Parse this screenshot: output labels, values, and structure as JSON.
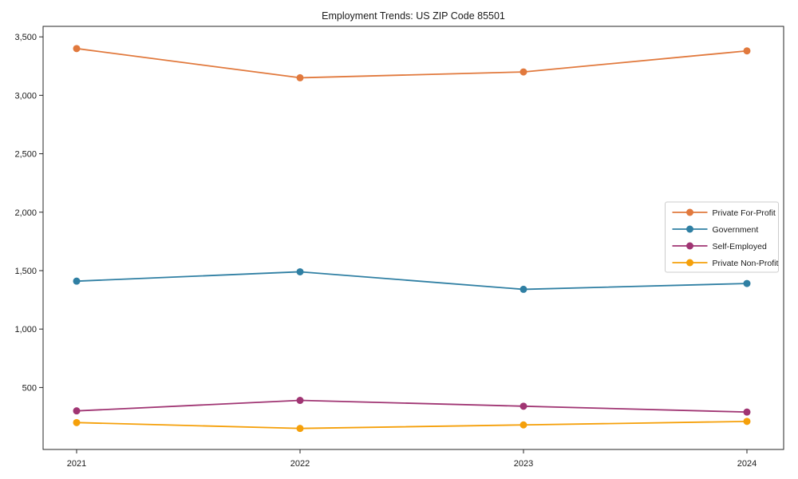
{
  "chart_data": {
    "type": "line",
    "title": "Employment Trends: US ZIP Code 85501",
    "xlabel": "",
    "ylabel": "",
    "categories": [
      "2021",
      "2022",
      "2023",
      "2024"
    ],
    "series": [
      {
        "name": "Private For-Profit",
        "color": "#e1793d",
        "values": [
          3400,
          3150,
          3200,
          3380
        ]
      },
      {
        "name": "Government",
        "color": "#2f7fa3",
        "values": [
          1410,
          1490,
          1340,
          1390
        ]
      },
      {
        "name": "Self-Employed",
        "color": "#a03573",
        "values": [
          300,
          390,
          340,
          290
        ]
      },
      {
        "name": "Private Non-Profit",
        "color": "#f5a00a",
        "values": [
          200,
          150,
          180,
          210
        ]
      }
    ],
    "y_ticks": [
      500,
      1000,
      1500,
      2000,
      2500,
      3000,
      3500
    ],
    "y_tick_labels": [
      "500",
      "1,000",
      "1,500",
      "2,000",
      "2,500",
      "3,000",
      "3,500"
    ],
    "ylim": [
      -30,
      3590
    ],
    "grid": false,
    "legend_position": "center-right",
    "marker": "circle"
  }
}
